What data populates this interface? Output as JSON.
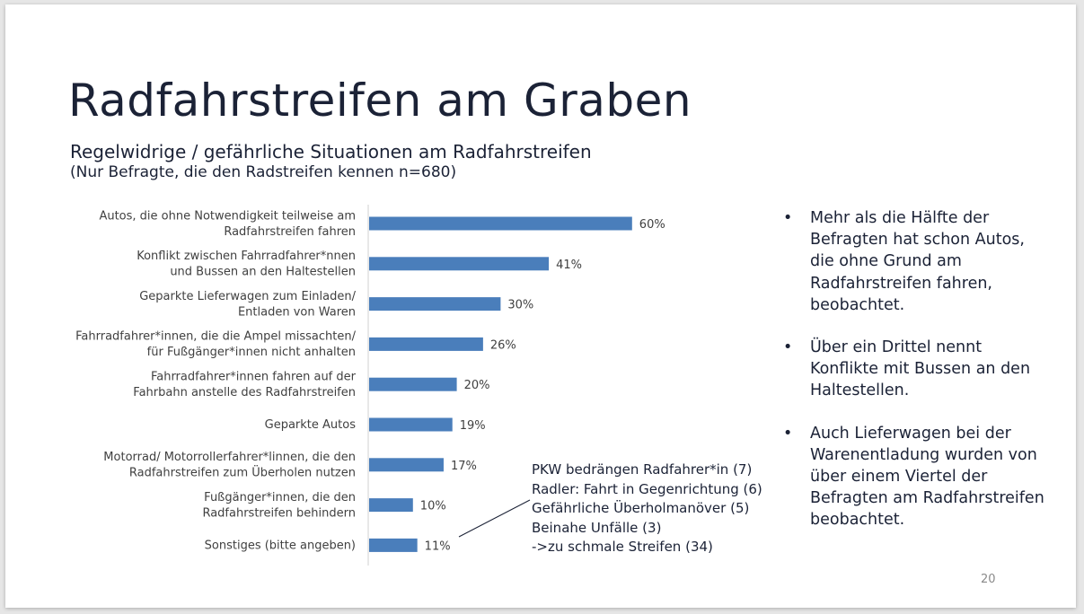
{
  "slide": {
    "title": "Radfahrstreifen am Graben",
    "subtitle": "Regelwidrige / gefährliche Situationen am Radfahrstreifen",
    "subtitle_note": "(Nur Befragte, die den Radstreifen kennen n=680)",
    "page_number": "20"
  },
  "annotation": {
    "lines": [
      "PKW bedrängen Radfahrer*in (7)",
      "Radler: Fahrt in Gegenrichtung (6)",
      "Gefährliche Überholmanöver (5)",
      "Beinahe Unfälle (3)",
      "->zu schmale Streifen (34)"
    ]
  },
  "bullets": [
    {
      "marker": "•",
      "text": "Mehr als die Hälfte der Befragten hat schon Autos, die ohne Grund am Radfahrstreifen fahren, beobachtet."
    },
    {
      "marker": "•",
      "text": "Über ein Drittel nennt Konflikte mit Bussen an den Haltestellen."
    },
    {
      "marker": "•",
      "text": "Auch Lieferwagen bei der Warenentladung wurden von über einem Viertel der Befragten am Radfahrstreifen beobachtet."
    }
  ],
  "chart_data": {
    "type": "bar",
    "orientation": "horizontal",
    "bar_color": "#4a7ebb",
    "categories": [
      [
        "Autos, die ohne Notwendigkeit teilweise am",
        "Radfahrstreifen fahren"
      ],
      [
        "Konflikt zwischen Fahrradfahrer*nnen",
        "und Bussen an den Haltestellen"
      ],
      [
        "Geparkte Lieferwagen zum Einladen/",
        "Entladen von Waren"
      ],
      [
        "Fahrradfahrer*innen, die die Ampel missachten/",
        "für Fußgänger*innen nicht anhalten"
      ],
      [
        "Fahrradfahrer*innen fahren auf der",
        "Fahrbahn anstelle des Radfahrstreifen"
      ],
      [
        "Geparkte Autos"
      ],
      [
        "Motorrad/ Motorrollerfahrer*linnen, die den",
        "Radfahrstreifen zum Überholen nutzen"
      ],
      [
        "Fußgänger*innen, die den",
        "Radfahrstreifen behindern"
      ],
      [
        "Sonstiges (bitte angeben)"
      ]
    ],
    "values": [
      60,
      41,
      30,
      26,
      20,
      19,
      17,
      10,
      11
    ],
    "value_labels": [
      "60%",
      "41%",
      "30%",
      "26%",
      "20%",
      "19%",
      "17%",
      "10%",
      "11%"
    ],
    "grid": false,
    "legend": "none"
  }
}
